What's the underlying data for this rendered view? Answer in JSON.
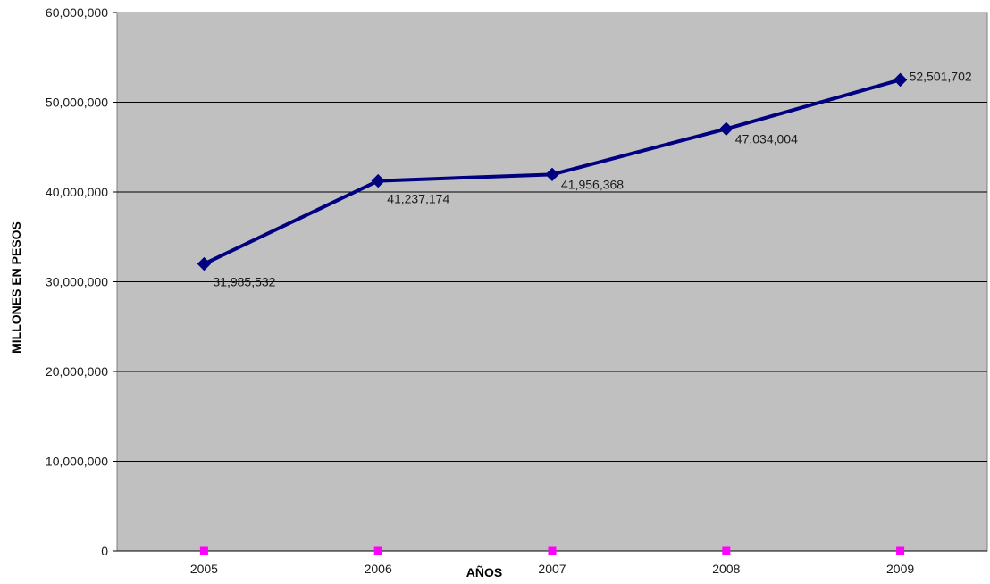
{
  "chart_data": {
    "type": "line",
    "title": "",
    "xlabel": "AÑOS",
    "ylabel": "MILLONES EN PESOS",
    "categories": [
      "2005",
      "2006",
      "2007",
      "2008",
      "2009"
    ],
    "series": [
      {
        "values": [
          31985532,
          41237174,
          41956368,
          47034004,
          52501702
        ],
        "data_labels": [
          "31,985,532",
          "41,237,174",
          "41,956,368",
          "47,034,004",
          "52,501,702"
        ],
        "color": "#000080"
      },
      {
        "values": [
          0,
          0,
          0,
          0,
          0
        ],
        "color": "#ff00ff"
      }
    ],
    "ylim": [
      0,
      60000000
    ],
    "yticks": [
      0,
      10000000,
      20000000,
      30000000,
      40000000,
      50000000,
      60000000
    ],
    "ytick_labels": [
      "0",
      "10,000,000",
      "20,000,000",
      "30,000,000",
      "40,000,000",
      "50,000,000",
      "60,000,000"
    ],
    "grid": true,
    "legend": "none",
    "plot_background": "#c0c0c0",
    "gridline_color": "#000000"
  }
}
